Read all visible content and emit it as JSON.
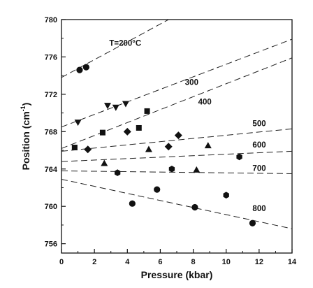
{
  "chart_data": {
    "type": "scatter",
    "xlabel": "Pressure (kbar)",
    "ylabel_main": "Position (cm",
    "ylabel_sup": "-1",
    "ylabel_tail": ")",
    "xlim": [
      0,
      14
    ],
    "ylim": [
      755,
      780
    ],
    "x_ticks": [
      "0",
      "2",
      "4",
      "6",
      "8",
      "10",
      "12",
      "14"
    ],
    "y_ticks": [
      "756",
      "760",
      "764",
      "768",
      "772",
      "776",
      "780"
    ],
    "grid": false,
    "series": [
      {
        "name": "T=200°C",
        "marker": "circle",
        "points": [
          [
            1.1,
            774.6
          ],
          [
            1.5,
            774.9
          ]
        ],
        "fit": [
          [
            0,
            773.8
          ],
          [
            6.5,
            780
          ]
        ]
      },
      {
        "name": "300",
        "marker": "triangle-down",
        "points": [
          [
            1.0,
            769.0
          ],
          [
            2.8,
            770.8
          ],
          [
            3.3,
            770.6
          ],
          [
            3.9,
            771.0
          ]
        ],
        "fit": [
          [
            0,
            768.5
          ],
          [
            14,
            777.9
          ]
        ]
      },
      {
        "name": "400",
        "marker": "square",
        "points": [
          [
            0.8,
            766.3
          ],
          [
            2.5,
            767.9
          ],
          [
            4.7,
            768.4
          ],
          [
            5.2,
            770.2
          ]
        ],
        "fit": [
          [
            0,
            766.2
          ],
          [
            14,
            775.9
          ]
        ]
      },
      {
        "name": "500",
        "marker": "diamond",
        "points": [
          [
            1.6,
            766.1
          ],
          [
            4.0,
            768.0
          ],
          [
            6.5,
            766.4
          ],
          [
            7.1,
            767.6
          ]
        ],
        "fit": [
          [
            0,
            765.9
          ],
          [
            14,
            768.3
          ]
        ]
      },
      {
        "name": "600",
        "marker": "triangle-up",
        "points": [
          [
            2.6,
            764.6
          ],
          [
            5.3,
            766.1
          ],
          [
            8.2,
            763.9
          ],
          [
            8.9,
            766.5
          ]
        ],
        "fit": [
          [
            0,
            764.8
          ],
          [
            14,
            765.9
          ]
        ]
      },
      {
        "name": "700",
        "marker": "hexagon",
        "points": [
          [
            3.4,
            763.6
          ],
          [
            6.7,
            764.0
          ],
          [
            10.0,
            761.2
          ],
          [
            10.8,
            765.3
          ]
        ],
        "fit": [
          [
            0,
            763.8
          ],
          [
            14,
            763.5
          ]
        ]
      },
      {
        "name": "800",
        "marker": "circle",
        "points": [
          [
            4.3,
            760.3
          ],
          [
            5.8,
            761.8
          ],
          [
            8.1,
            759.9
          ],
          [
            11.6,
            758.2
          ]
        ],
        "fit": [
          [
            0,
            762.9
          ],
          [
            14,
            757.6
          ]
        ]
      }
    ],
    "labels": [
      {
        "text": "T=200°C",
        "x": 2.9,
        "y": 777.2
      },
      {
        "text": "300",
        "x": 7.5,
        "y": 773.0
      },
      {
        "text": "400",
        "x": 8.3,
        "y": 770.9
      },
      {
        "text": "500",
        "x": 11.6,
        "y": 768.6
      },
      {
        "text": "600",
        "x": 11.6,
        "y": 766.3
      },
      {
        "text": "700",
        "x": 11.6,
        "y": 763.8
      },
      {
        "text": "800",
        "x": 11.6,
        "y": 759.5
      }
    ]
  }
}
